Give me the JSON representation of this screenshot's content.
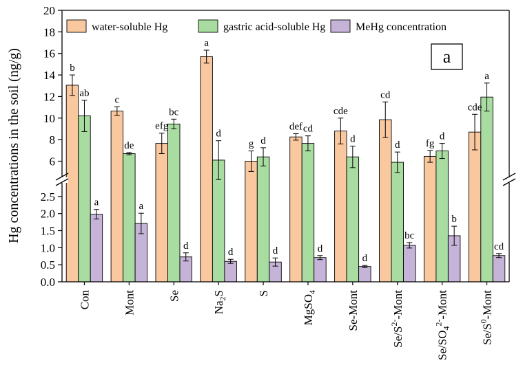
{
  "chart_data": {
    "type": "bar",
    "panel_label": "a",
    "ylabel": "Hg concentrations in the soil (ng/g)",
    "categories": [
      "Con",
      "Mont",
      "Se",
      "Na2S",
      "S",
      "MgSO4",
      "Se-Mont",
      "Se/S2--Mont",
      "Se/SO42--Mont",
      "Se/S0-Mont"
    ],
    "category_labels": [
      {
        "base": "Con"
      },
      {
        "base": "Mont"
      },
      {
        "base": "Se"
      },
      {
        "base": "Na",
        "sub": "2",
        "rest": "S"
      },
      {
        "base": "S"
      },
      {
        "base": "MgSO",
        "sub": "4"
      },
      {
        "base": "Se-Mont"
      },
      {
        "base": "Se/S",
        "sup": "2-",
        "rest": "-Mont"
      },
      {
        "base": "Se/SO",
        "sub": "4",
        "sup": "2-",
        "rest": "-Mont"
      },
      {
        "base": "Se/S",
        "sup": "0",
        "rest": "-Mont"
      }
    ],
    "series": [
      {
        "name": "water-soluble Hg",
        "color": "#f9c89f",
        "values": [
          13.05,
          10.65,
          7.65,
          15.7,
          6.0,
          8.25,
          8.8,
          9.85,
          6.45,
          8.7
        ],
        "errors": [
          0.95,
          0.4,
          0.95,
          0.6,
          0.95,
          0.3,
          1.2,
          1.65,
          0.55,
          1.65
        ],
        "sig": [
          "b",
          "c",
          "efg",
          "a",
          "g",
          "def",
          "cde",
          "cd",
          "fg",
          "cde"
        ]
      },
      {
        "name": "gastric acid-soluble Hg",
        "color": "#a9dca1",
        "values": [
          10.2,
          6.7,
          9.45,
          6.1,
          6.4,
          7.65,
          6.4,
          5.9,
          6.95,
          11.95
        ],
        "errors": [
          1.45,
          0.1,
          0.45,
          1.8,
          0.85,
          0.7,
          1.0,
          0.95,
          0.7,
          1.3
        ],
        "sig": [
          "ab",
          "de",
          "bc",
          "d",
          "d",
          "cd",
          "d",
          "d",
          "d",
          "a"
        ]
      },
      {
        "name": "MeHg concentration",
        "color": "#c6b4d8",
        "values": [
          1.98,
          1.71,
          0.73,
          0.6,
          0.58,
          0.71,
          0.45,
          1.07,
          1.35,
          0.77
        ],
        "errors": [
          0.14,
          0.3,
          0.12,
          0.06,
          0.12,
          0.06,
          0.03,
          0.08,
          0.28,
          0.06
        ],
        "sig": [
          "a",
          "a",
          "d",
          "d",
          "d",
          "d",
          "d",
          "bc",
          "b",
          "cd"
        ]
      }
    ],
    "y_axis": {
      "broken": true,
      "lower_segment": {
        "range": [
          0,
          2.9
        ],
        "ticks": [
          "0.0",
          "0.5",
          "1.0",
          "1.5",
          "2.0",
          "2.5"
        ],
        "tick_values": [
          0,
          0.5,
          1.0,
          1.5,
          2.0,
          2.5
        ]
      },
      "upper_segment": {
        "range": [
          4.5,
          20
        ],
        "ticks": [
          "6",
          "8",
          "10",
          "12",
          "14",
          "16",
          "18",
          "20"
        ],
        "tick_values": [
          6,
          8,
          10,
          12,
          14,
          16,
          18,
          20
        ]
      }
    },
    "legend_placement": "top",
    "grid": false
  }
}
